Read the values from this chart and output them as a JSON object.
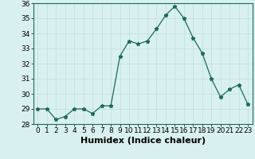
{
  "x": [
    0,
    1,
    2,
    3,
    4,
    5,
    6,
    7,
    8,
    9,
    10,
    11,
    12,
    13,
    14,
    15,
    16,
    17,
    18,
    19,
    20,
    21,
    22,
    23
  ],
  "y": [
    29.0,
    29.0,
    28.3,
    28.5,
    29.0,
    29.0,
    28.7,
    29.2,
    29.2,
    32.5,
    33.5,
    33.3,
    33.5,
    34.3,
    35.2,
    35.8,
    35.0,
    33.7,
    32.7,
    31.0,
    29.8,
    30.3,
    30.6,
    29.3
  ],
  "xlabel": "Humidex (Indice chaleur)",
  "ylim": [
    28,
    36
  ],
  "xlim": [
    -0.5,
    23.5
  ],
  "yticks": [
    28,
    29,
    30,
    31,
    32,
    33,
    34,
    35,
    36
  ],
  "xticks": [
    0,
    1,
    2,
    3,
    4,
    5,
    6,
    7,
    8,
    9,
    10,
    11,
    12,
    13,
    14,
    15,
    16,
    17,
    18,
    19,
    20,
    21,
    22,
    23
  ],
  "line_color": "#1a6b5a",
  "marker": "*",
  "marker_size": 3.5,
  "bg_color": "#d9f0f0",
  "grid_color": "#c0dede",
  "tick_fontsize": 6.5,
  "xlabel_fontsize": 8,
  "xlabel_fontweight": "bold"
}
